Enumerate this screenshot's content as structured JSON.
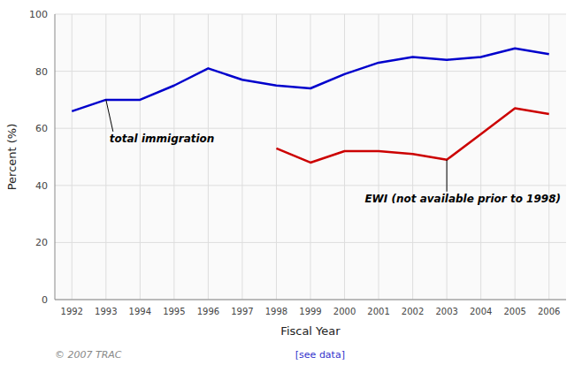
{
  "chart_data": {
    "type": "line",
    "xlabel": "Fiscal Year",
    "ylabel": "Percent (%)",
    "series": [
      {
        "color": "#0000cc",
        "x": [
          1992,
          1993,
          1994,
          1995,
          1996,
          1997,
          1998,
          1999,
          2000,
          2001,
          2002,
          2003,
          2004,
          2005,
          2006
        ],
        "values": [
          66,
          70,
          70,
          75,
          81,
          77,
          75,
          74,
          79,
          83,
          85,
          84,
          85,
          88,
          86
        ]
      },
      {
        "color": "#cc0000",
        "x": [
          1998,
          1999,
          2000,
          2001,
          2002,
          2003,
          2004,
          2005,
          2006
        ],
        "values": [
          53,
          48,
          52,
          52,
          51,
          49,
          58,
          67,
          65
        ]
      }
    ],
    "xlim": [
      1991.5,
      2006.5
    ],
    "xticks": [
      1992,
      1993,
      1994,
      1995,
      1996,
      1997,
      1998,
      1999,
      2000,
      2001,
      2002,
      2003,
      2004,
      2005,
      2006
    ],
    "ylim": [
      0,
      100
    ],
    "yticks": [
      0,
      20,
      40,
      60,
      80,
      100
    ],
    "grid": true,
    "annotations": [
      {
        "text": "total immigration",
        "x": 1993,
        "y": 70
      },
      {
        "text": "EWI (not available prior to 1998)",
        "x": 2003,
        "y": 49
      }
    ],
    "footnotes": [
      "© 2007 TRAC",
      "[see data]"
    ]
  }
}
